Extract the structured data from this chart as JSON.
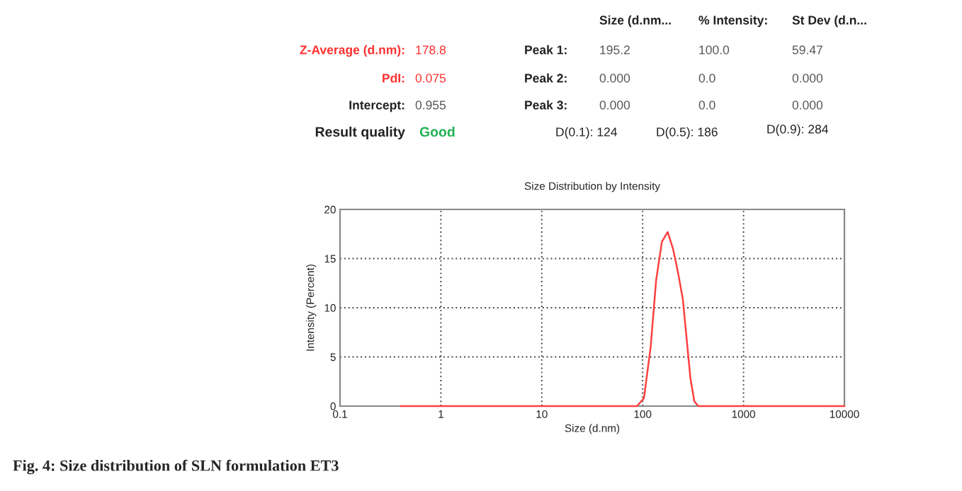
{
  "chart_data": {
    "type": "line",
    "title": "Size Distribution by Intensity",
    "xlabel": "Size (d.nm)",
    "ylabel": "Intensity (Percent)",
    "log": "x",
    "xlim": [
      0.1,
      10000
    ],
    "xticks": [
      0.1,
      1,
      10,
      100,
      1000,
      10000
    ],
    "ylim": [
      0,
      20
    ],
    "yticks": [
      0,
      5,
      10,
      15,
      20
    ],
    "grid": true,
    "marker": "none",
    "line_style": "solid",
    "series": [
      {
        "color": "#ff4040",
        "x": [
          0.4,
          1,
          10,
          50,
          88,
          103,
          120,
          136,
          155,
          177,
          200,
          225,
          250,
          275,
          297,
          325,
          355,
          400,
          1000,
          10000
        ],
        "values": [
          0,
          0,
          0,
          0,
          0,
          0.8,
          6,
          12.8,
          16.7,
          17.7,
          16,
          13.5,
          10.9,
          6.5,
          2.9,
          0.5,
          0,
          0,
          0,
          0
        ]
      }
    ],
    "annotations": [
      "Size (d.nm...",
      "% Intensity:",
      "St Dev (d.n...",
      "Z-Average (d.nm):",
      "178.8",
      "PdI:",
      "0.075",
      "Intercept:",
      "0.955",
      "Result quality",
      "Good",
      "Peak 1:",
      "195.2",
      "100.0",
      "59.47",
      "Peak 2:",
      "0.000",
      "0.0",
      "0.000",
      "Peak 3:",
      "0.000",
      "0.0",
      "0.000",
      "D(0.1): 124",
      "D(0.5): 186",
      "D(0.9): 284",
      "Fig. 4: Size distribution of SLN formulation ET3"
    ]
  }
}
